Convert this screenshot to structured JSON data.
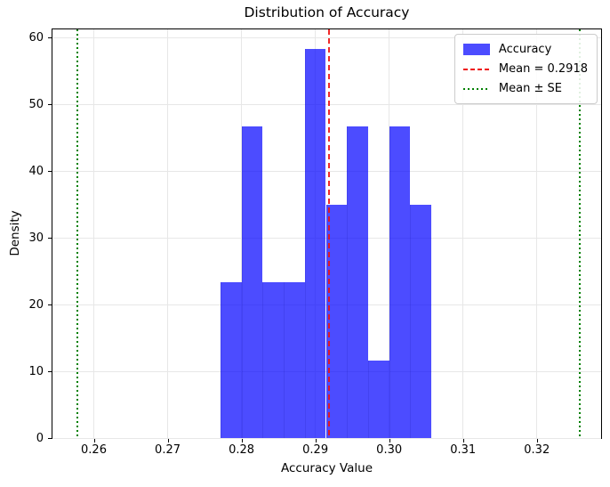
{
  "chart_data": {
    "type": "bar",
    "subtype": "histogram",
    "title": "Distribution of Accuracy",
    "xlabel": "Accuracy Value",
    "ylabel": "Density",
    "density": true,
    "n_samples": 30,
    "bin_edges": [
      0.27714,
      0.28,
      0.28286,
      0.28571,
      0.28857,
      0.29143,
      0.29429,
      0.29714,
      0.3,
      0.30286,
      0.30571
    ],
    "bin_counts": [
      2,
      4,
      2,
      2,
      5,
      3,
      4,
      1,
      4,
      3
    ],
    "bin_heights": [
      23.33,
      46.67,
      23.33,
      23.33,
      58.33,
      35.0,
      46.67,
      11.67,
      46.67,
      35.0
    ],
    "xlim": [
      0.2544,
      0.3287
    ],
    "ylim": [
      0,
      61.25
    ],
    "xticks": {
      "values": [
        0.26,
        0.27,
        0.28,
        0.29,
        0.3,
        0.31,
        0.32
      ],
      "labels": [
        "0.26",
        "0.27",
        "0.28",
        "0.29",
        "0.30",
        "0.31",
        "0.32"
      ]
    },
    "yticks": {
      "values": [
        0,
        10,
        20,
        30,
        40,
        50,
        60
      ],
      "labels": [
        "0",
        "10",
        "20",
        "30",
        "40",
        "50",
        "60"
      ]
    },
    "grid": true,
    "grid_color": "#e7e7e7",
    "bar_color": "#0000ff",
    "bar_alpha": 0.7,
    "mean_line": {
      "value": 0.2918,
      "color": "#ee1111",
      "style": "dashed",
      "label": "Mean = 0.2918"
    },
    "se_lines": {
      "values": [
        0.2578,
        0.3258
      ],
      "color": "#008000",
      "style": "dotted",
      "label": "Mean ± SE"
    },
    "legend": {
      "location": "upper right",
      "entries": [
        {
          "label": "Accuracy",
          "sample": "patch",
          "color": "#0000ff",
          "alpha": 0.7
        },
        {
          "label": "Mean = 0.2918",
          "sample": "dashed-line",
          "color": "#ee1111"
        },
        {
          "label": "Mean ± SE",
          "sample": "dotted-line",
          "color": "#008000"
        }
      ]
    }
  }
}
